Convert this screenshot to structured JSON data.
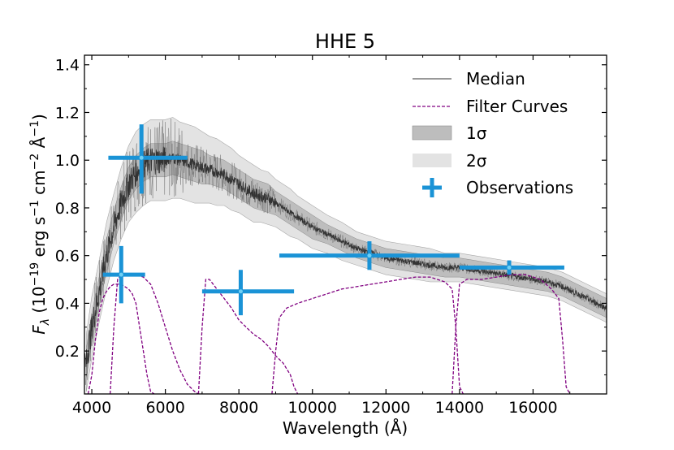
{
  "chart_data": {
    "type": "line",
    "title": "HHE 5",
    "xlabel": "Wavelength (Å)",
    "ylabel": "F_λ (10^-19 erg s^-1 cm^-2 Å^-1)",
    "xlim": [
      3800,
      18000
    ],
    "ylim": [
      0.02,
      1.44
    ],
    "xticks": [
      4000,
      6000,
      8000,
      10000,
      12000,
      14000,
      16000
    ],
    "yticks": [
      0.2,
      0.4,
      0.6,
      0.8,
      1.0,
      1.2,
      1.4
    ],
    "legend_position": "top-right",
    "legend": [
      "Median",
      "Filter Curves",
      "1σ",
      "2σ",
      "Observations"
    ],
    "colors": {
      "median": "#333333",
      "band_1sigma": "#bdbdbd",
      "band_2sigma": "#e3e3e3",
      "filter": "#800080",
      "observations": "#1a93d6"
    },
    "median_spectrum": {
      "x": [
        3850,
        4000,
        4200,
        4400,
        4600,
        4800,
        5000,
        5200,
        5400,
        5600,
        5800,
        6000,
        6200,
        6400,
        6600,
        6800,
        7000,
        7200,
        7400,
        7600,
        7800,
        8000,
        8200,
        8400,
        8600,
        8800,
        9000,
        9200,
        9400,
        9600,
        9800,
        10000,
        10400,
        10800,
        11200,
        11600,
        12000,
        12400,
        12800,
        13200,
        13600,
        14000,
        14400,
        14800,
        15200,
        15600,
        16000,
        16400,
        16800,
        17200,
        17600,
        18000
      ],
      "y": [
        0.15,
        0.3,
        0.45,
        0.6,
        0.72,
        0.82,
        0.9,
        0.95,
        0.98,
        1.0,
        1.0,
        1.0,
        1.01,
        1.0,
        0.99,
        0.98,
        0.97,
        0.96,
        0.95,
        0.94,
        0.92,
        0.9,
        0.88,
        0.86,
        0.85,
        0.84,
        0.82,
        0.8,
        0.78,
        0.76,
        0.74,
        0.72,
        0.69,
        0.66,
        0.63,
        0.61,
        0.59,
        0.58,
        0.57,
        0.56,
        0.55,
        0.55,
        0.54,
        0.53,
        0.52,
        0.51,
        0.5,
        0.49,
        0.47,
        0.44,
        0.41,
        0.38
      ],
      "sigma1": [
        0.06,
        0.06,
        0.06,
        0.07,
        0.07,
        0.07,
        0.07,
        0.07,
        0.07,
        0.07,
        0.07,
        0.07,
        0.07,
        0.07,
        0.07,
        0.07,
        0.07,
        0.06,
        0.06,
        0.06,
        0.06,
        0.06,
        0.06,
        0.06,
        0.06,
        0.06,
        0.05,
        0.05,
        0.05,
        0.05,
        0.05,
        0.05,
        0.04,
        0.04,
        0.04,
        0.04,
        0.04,
        0.04,
        0.04,
        0.04,
        0.04,
        0.04,
        0.04,
        0.04,
        0.04,
        0.04,
        0.04,
        0.04,
        0.04,
        0.04,
        0.04,
        0.04
      ],
      "sigma2": [
        0.12,
        0.13,
        0.13,
        0.14,
        0.14,
        0.15,
        0.16,
        0.17,
        0.17,
        0.17,
        0.17,
        0.17,
        0.17,
        0.16,
        0.16,
        0.16,
        0.15,
        0.14,
        0.14,
        0.13,
        0.13,
        0.12,
        0.12,
        0.12,
        0.11,
        0.11,
        0.1,
        0.1,
        0.1,
        0.09,
        0.09,
        0.09,
        0.08,
        0.08,
        0.07,
        0.07,
        0.07,
        0.07,
        0.07,
        0.07,
        0.06,
        0.06,
        0.06,
        0.06,
        0.06,
        0.06,
        0.06,
        0.06,
        0.06,
        0.06,
        0.06,
        0.06
      ]
    },
    "observations": [
      {
        "x": 4800,
        "y": 0.52,
        "xerr": [
          4300,
          5450
        ],
        "yerr": [
          0.4,
          0.64
        ]
      },
      {
        "x": 5350,
        "y": 1.01,
        "xerr": [
          4450,
          6600
        ],
        "yerr": [
          0.86,
          1.15
        ]
      },
      {
        "x": 8050,
        "y": 0.45,
        "xerr": [
          7000,
          9500
        ],
        "yerr": [
          0.35,
          0.54
        ]
      },
      {
        "x": 11550,
        "y": 0.6,
        "xerr": [
          9100,
          14000
        ],
        "yerr": [
          0.54,
          0.66
        ]
      },
      {
        "x": 15350,
        "y": 0.55,
        "xerr": [
          14000,
          16850
        ],
        "yerr": [
          0.52,
          0.58
        ]
      }
    ],
    "filter_curves": [
      {
        "x": [
          3900,
          4000,
          4100,
          4200,
          4300,
          4400,
          4500,
          4600,
          4700,
          4800,
          4900,
          5000,
          5100,
          5200,
          5300,
          5400,
          5500,
          5600,
          5700
        ],
        "y": [
          0.02,
          0.1,
          0.25,
          0.36,
          0.42,
          0.45,
          0.47,
          0.48,
          0.48,
          0.48,
          0.47,
          0.46,
          0.44,
          0.4,
          0.3,
          0.2,
          0.1,
          0.03,
          0.02
        ]
      },
      {
        "x": [
          4500,
          4600,
          4700,
          4800,
          5000,
          5200,
          5400,
          5600,
          5800,
          6000,
          6200,
          6400,
          6600,
          6800,
          6900,
          7000
        ],
        "y": [
          0.02,
          0.3,
          0.5,
          0.52,
          0.52,
          0.52,
          0.51,
          0.48,
          0.4,
          0.3,
          0.2,
          0.12,
          0.06,
          0.03,
          0.02,
          0.02
        ]
      },
      {
        "x": [
          6900,
          7000,
          7100,
          7200,
          7400,
          7600,
          7800,
          8000,
          8200,
          8400,
          8600,
          8800,
          9000,
          9200,
          9400,
          9500,
          9600
        ],
        "y": [
          0.02,
          0.3,
          0.5,
          0.5,
          0.46,
          0.42,
          0.38,
          0.33,
          0.3,
          0.27,
          0.25,
          0.22,
          0.18,
          0.15,
          0.1,
          0.05,
          0.02
        ]
      },
      {
        "x": [
          8900,
          9000,
          9100,
          9300,
          9600,
          10000,
          10400,
          10800,
          11200,
          11600,
          12000,
          12400,
          12800,
          13200,
          13600,
          13800,
          13900,
          14000,
          14100
        ],
        "y": [
          0.02,
          0.2,
          0.34,
          0.38,
          0.4,
          0.42,
          0.44,
          0.46,
          0.47,
          0.48,
          0.49,
          0.5,
          0.51,
          0.51,
          0.49,
          0.46,
          0.3,
          0.05,
          0.02
        ]
      },
      {
        "x": [
          13800,
          13900,
          14000,
          14200,
          14600,
          15000,
          15400,
          15800,
          16200,
          16500,
          16700,
          16800,
          16900,
          17000
        ],
        "y": [
          0.02,
          0.3,
          0.48,
          0.5,
          0.5,
          0.51,
          0.52,
          0.52,
          0.5,
          0.46,
          0.42,
          0.25,
          0.05,
          0.02
        ]
      }
    ]
  }
}
